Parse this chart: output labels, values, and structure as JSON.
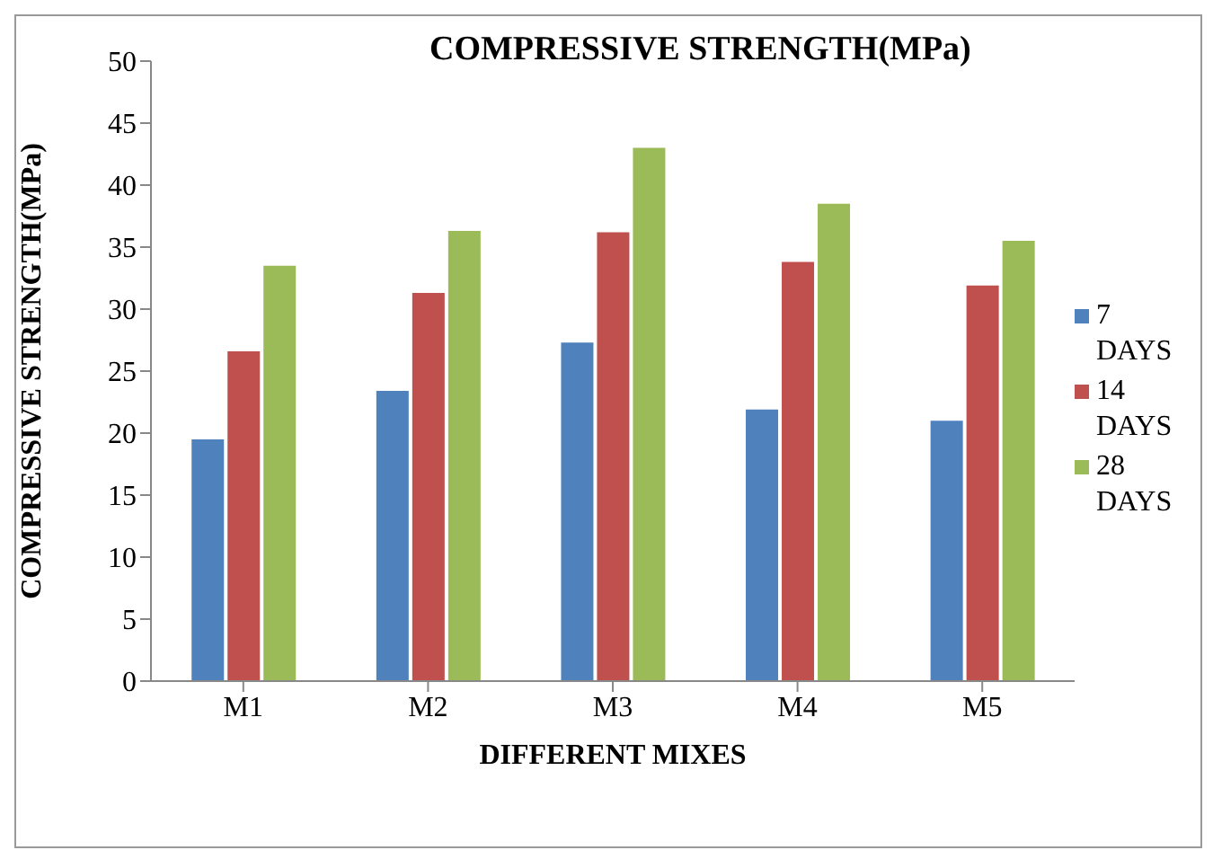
{
  "chart_data": {
    "type": "bar",
    "title": "COMPRESSIVE STRENGTH(MPa)",
    "xlabel": "DIFFERENT MIXES",
    "ylabel": "COMPRESSIVE STRENGTH(MPa)",
    "categories": [
      "M1",
      "M2",
      "M3",
      "M4",
      "M5"
    ],
    "series": [
      {
        "name": "7 DAYS",
        "color": "#4f81bd",
        "values": [
          19.5,
          23.4,
          27.3,
          21.9,
          21.0
        ]
      },
      {
        "name": "14 DAYS",
        "color": "#c0504d",
        "values": [
          26.6,
          31.3,
          36.2,
          33.8,
          31.9
        ]
      },
      {
        "name": "28 DAYS",
        "color": "#9bbb59",
        "values": [
          33.5,
          36.3,
          43.0,
          38.5,
          35.5
        ]
      }
    ],
    "ylim": [
      0,
      50
    ],
    "yticks": [
      0,
      5,
      10,
      15,
      20,
      25,
      30,
      35,
      40,
      45,
      50
    ],
    "grid": false,
    "legend": "right"
  }
}
